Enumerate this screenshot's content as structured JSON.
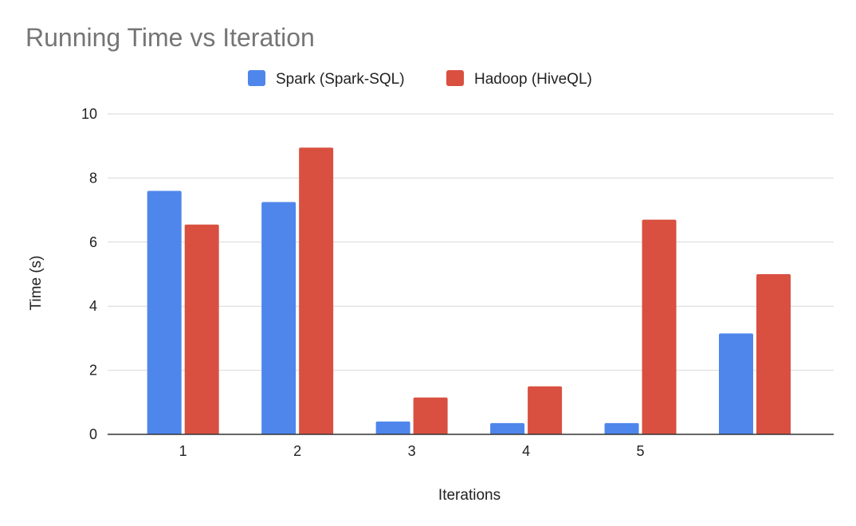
{
  "chart_data": {
    "type": "bar",
    "title": "Running Time vs Iteration",
    "xlabel": "Iterations",
    "ylabel": "Time (s)",
    "categories": [
      "1",
      "2",
      "3",
      "4",
      "5",
      ""
    ],
    "series": [
      {
        "name": "Spark (Spark-SQL)",
        "color": "#4f86ec",
        "values": [
          7.6,
          7.25,
          0.4,
          0.35,
          0.35,
          3.15
        ]
      },
      {
        "name": "Hadoop (HiveQL)",
        "color": "#d95040",
        "values": [
          6.55,
          8.95,
          1.15,
          1.5,
          6.7,
          5.0
        ]
      }
    ],
    "ylim": [
      0,
      10
    ],
    "yticks": [
      "0",
      "2",
      "4",
      "6",
      "8",
      "10"
    ],
    "grid": true,
    "legend_position": "top-center"
  }
}
